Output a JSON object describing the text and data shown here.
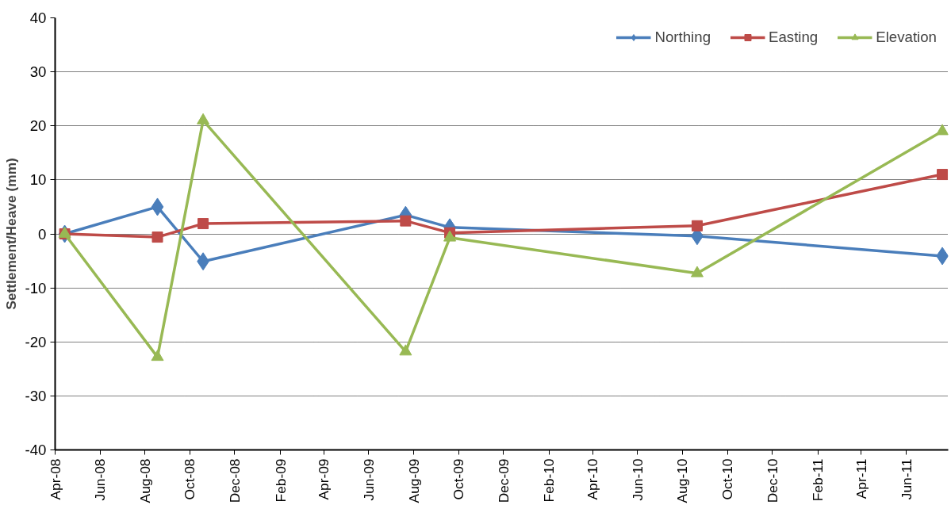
{
  "chart_data": {
    "type": "line",
    "ylabel": "Settlement/Heave (mm)",
    "x": [
      "2008-04-14",
      "2008-08-18",
      "2008-10-19",
      "2009-07-21",
      "2009-09-19",
      "2010-08-21",
      "2011-07-20"
    ],
    "series": [
      {
        "name": "Northing",
        "color": "#4a7ebb",
        "marker": "diamond",
        "values": [
          0,
          5,
          -5.1,
          3.5,
          1.2,
          -0.4,
          -4.1
        ]
      },
      {
        "name": "Easting",
        "color": "#be4b48",
        "marker": "square",
        "values": [
          0,
          -0.6,
          1.9,
          2.4,
          0.2,
          1.5,
          11
        ]
      },
      {
        "name": "Elevation",
        "color": "#98b954",
        "marker": "triangle",
        "values": [
          0,
          -22.8,
          21,
          -21.8,
          -0.7,
          -7.3,
          19
        ]
      }
    ],
    "xlim": [
      "2008-04-01",
      "2011-07-28"
    ],
    "xticks": [
      {
        "value": "2008-04-01",
        "label": "Apr-08"
      },
      {
        "value": "2008-06-01",
        "label": "Jun-08"
      },
      {
        "value": "2008-08-01",
        "label": "Aug-08"
      },
      {
        "value": "2008-10-01",
        "label": "Oct-08"
      },
      {
        "value": "2008-12-01",
        "label": "Dec-08"
      },
      {
        "value": "2009-02-01",
        "label": "Feb-09"
      },
      {
        "value": "2009-04-01",
        "label": "Apr-09"
      },
      {
        "value": "2009-06-01",
        "label": "Jun-09"
      },
      {
        "value": "2009-08-01",
        "label": "Aug-09"
      },
      {
        "value": "2009-10-01",
        "label": "Oct-09"
      },
      {
        "value": "2009-12-01",
        "label": "Dec-09"
      },
      {
        "value": "2010-02-01",
        "label": "Feb-10"
      },
      {
        "value": "2010-04-01",
        "label": "Apr-10"
      },
      {
        "value": "2010-06-01",
        "label": "Jun-10"
      },
      {
        "value": "2010-08-01",
        "label": "Aug-10"
      },
      {
        "value": "2010-10-01",
        "label": "Oct-10"
      },
      {
        "value": "2010-12-01",
        "label": "Dec-10"
      },
      {
        "value": "2011-02-01",
        "label": "Feb-11"
      },
      {
        "value": "2011-04-01",
        "label": "Apr-11"
      },
      {
        "value": "2011-06-01",
        "label": "Jun-11"
      }
    ],
    "ylim": [
      -40,
      40
    ],
    "yticks": [
      -40,
      -30,
      -20,
      -10,
      0,
      10,
      20,
      30,
      40
    ],
    "grid": "y",
    "legend": "top right",
    "line_style": "solid"
  }
}
